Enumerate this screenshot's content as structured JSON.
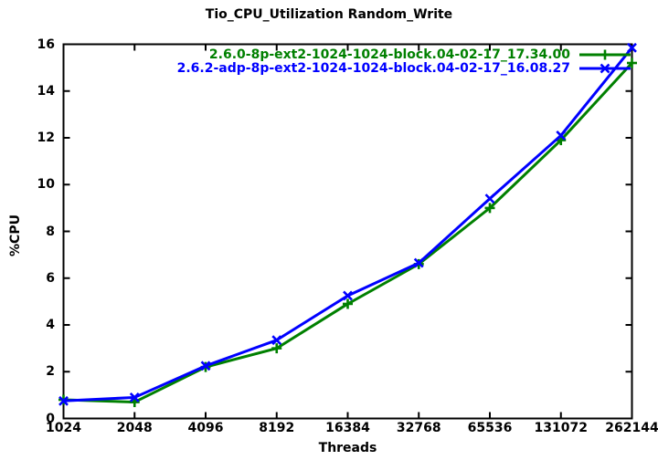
{
  "chart_data": {
    "type": "line",
    "title": "Tio_CPU_Utilization Random_Write",
    "xlabel": "Threads",
    "ylabel": "%CPU",
    "x_scale": "log2",
    "grid": false,
    "legend_position": "top-right-inside",
    "categories": [
      1024,
      2048,
      4096,
      8192,
      16384,
      32768,
      65536,
      131072,
      262144
    ],
    "x_tick_labels": [
      "1024",
      "2048",
      "4096",
      "8192",
      "16384",
      "32768",
      "65536",
      "131072",
      "262144"
    ],
    "y_ticks": [
      0,
      2,
      4,
      6,
      8,
      10,
      12,
      14,
      16
    ],
    "y_tick_labels": [
      "0",
      "2",
      "4",
      "6",
      "8",
      "10",
      "12",
      "14",
      "16"
    ],
    "ylim": [
      0,
      16
    ],
    "axis_color": "#000000",
    "background_color": "#ffffff",
    "series": [
      {
        "name": "2.6.0-8p-ext2-1024-1024-block.04-02-17_17.34.00",
        "color": "#008000",
        "marker": "plus",
        "values": [
          0.8,
          0.7,
          2.2,
          3.0,
          4.9,
          6.6,
          9.0,
          11.9,
          15.2
        ]
      },
      {
        "name": "2.6.2-adp-8p-ext2-1024-1024-block.04-02-17_16.08.27",
        "color": "#0000ff",
        "marker": "cross",
        "values": [
          0.75,
          0.9,
          2.25,
          3.35,
          5.25,
          6.65,
          9.4,
          12.1,
          15.85
        ]
      }
    ]
  }
}
